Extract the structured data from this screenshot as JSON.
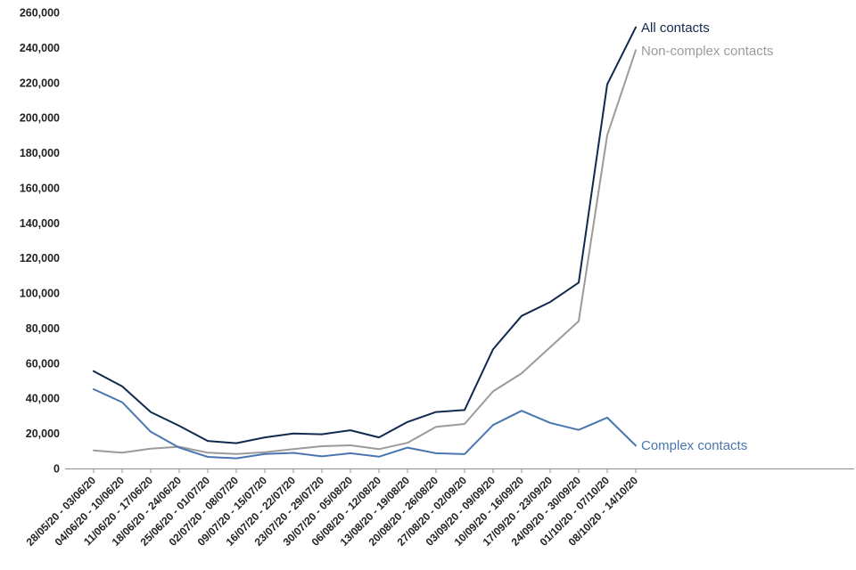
{
  "chart_data": {
    "type": "line",
    "title": "",
    "xlabel": "",
    "ylabel": "",
    "ylim": [
      0,
      260000
    ],
    "yticks": [
      0,
      20000,
      40000,
      60000,
      80000,
      100000,
      120000,
      140000,
      160000,
      180000,
      200000,
      220000,
      240000,
      260000
    ],
    "ytick_labels": [
      "0",
      "20,000",
      "40,000",
      "60,000",
      "80,000",
      "100,000",
      "120,000",
      "140,000",
      "160,000",
      "180,000",
      "200,000",
      "220,000",
      "240,000",
      "260,000"
    ],
    "grid": false,
    "legend": "labels at line ends",
    "categories": [
      "28/05/20 - 03/06/20",
      "04/06/20 - 10/06/20",
      "11/06/20 - 17/06/20",
      "18/06/20 - 24/06/20",
      "25/06/20 - 01/07/20",
      "02/07/20 - 08/07/20",
      "09/07/20 - 15/07/20",
      "16/07/20 - 22/07/20",
      "23/07/20 - 29/07/20",
      "30/07/20 - 05/08/20",
      "06/08/20 - 12/08/20",
      "13/08/20 - 19/08/20",
      "20/08/20 - 26/08/20",
      "27/08/20 - 02/09/20",
      "03/09/20 - 09/09/20",
      "10/09/20 - 16/09/20",
      "17/09/20 - 23/09/20",
      "24/09/20 - 30/09/20",
      "01/10/20 - 07/10/20",
      "08/10/20 - 14/10/20"
    ],
    "series": [
      {
        "name": "All contacts",
        "color": "#12294f",
        "values": [
          55500,
          46800,
          32200,
          24300,
          15700,
          14400,
          17700,
          19900,
          19500,
          21800,
          17700,
          26500,
          32200,
          33300,
          68000,
          87000,
          94900,
          106000,
          219000,
          251500
        ]
      },
      {
        "name": "Non-complex contacts",
        "color": "#9b9b9b",
        "values": [
          10300,
          9000,
          11300,
          12400,
          9000,
          8300,
          9300,
          11000,
          12700,
          13200,
          11000,
          14600,
          23700,
          25400,
          44000,
          54300,
          69100,
          84000,
          190000,
          238500
        ]
      },
      {
        "name": "Complex contacts",
        "color": "#4a76b0",
        "values": [
          45200,
          37800,
          20900,
          11900,
          6600,
          5800,
          8300,
          8900,
          6900,
          8700,
          6700,
          11900,
          8700,
          8200,
          24800,
          32900,
          26000,
          22000,
          29000,
          13000
        ]
      }
    ]
  }
}
